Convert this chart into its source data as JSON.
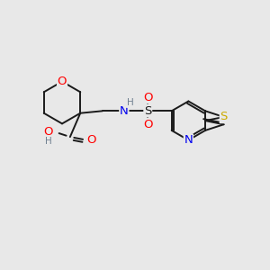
{
  "bg_color": "#e8e8e8",
  "bond_color": "#1a1a1a",
  "colors": {
    "O": "#ff0000",
    "N": "#0000ee",
    "S_yellow": "#ccaa00",
    "H": "#708090",
    "C": "#1a1a1a"
  },
  "fs": 8.5,
  "lw": 1.4
}
